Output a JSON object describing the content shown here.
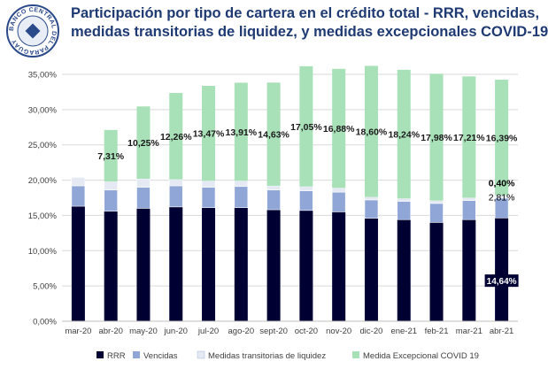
{
  "title": {
    "line1": "Participación por tipo de cartera en el crédito total  - RRR, vencidas,",
    "line2": "medidas transitorias de liquidez, y medidas excepcionales COVID-19"
  },
  "logo": {
    "text": "BANCO CENTRAL DEL PARAGUAY"
  },
  "colors": {
    "rrr": "#000033",
    "vencidas": "#8fa6d6",
    "transitorias": "#e4e9f4",
    "covid": "#a8e0b8",
    "grid": "#d9d9d9",
    "title": "#1f3a73"
  },
  "chart_data": {
    "type": "bar",
    "stacked": true,
    "categories": [
      "mar-20",
      "abr-20",
      "may-20",
      "jun-20",
      "jul-20",
      "ago-20",
      "sept-20",
      "oct-20",
      "nov-20",
      "dic-20",
      "ene-21",
      "feb-21",
      "mar-21",
      "abr-21"
    ],
    "ylim": [
      0,
      35
    ],
    "yticks": [
      "0,00%",
      "5,00%",
      "10,00%",
      "15,00%",
      "20,00%",
      "25,00%",
      "30,00%",
      "35,00%"
    ],
    "series": [
      {
        "name": "RRR",
        "values": [
          16.3,
          15.6,
          16.0,
          16.2,
          16.1,
          16.1,
          15.8,
          15.7,
          15.5,
          14.6,
          14.4,
          14.0,
          14.4,
          14.64
        ]
      },
      {
        "name": "Vencidas",
        "values": [
          2.9,
          3.0,
          3.0,
          3.0,
          2.9,
          3.0,
          2.8,
          2.8,
          2.8,
          2.6,
          2.6,
          2.7,
          2.7,
          2.81
        ]
      },
      {
        "name": "Medidas transitorias de liquidez",
        "values": [
          1.2,
          1.2,
          1.2,
          0.9,
          0.9,
          0.8,
          0.6,
          0.6,
          0.6,
          0.4,
          0.4,
          0.4,
          0.4,
          0.4
        ]
      },
      {
        "name": "Medida Excepcional COVID 19",
        "values": [
          0,
          7.31,
          10.25,
          12.26,
          13.47,
          13.91,
          14.63,
          17.05,
          16.88,
          18.6,
          18.24,
          17.98,
          17.21,
          16.39
        ]
      }
    ],
    "data_labels": [
      "",
      "7,31%",
      "10,25%",
      "12,26%",
      "13,47%",
      "13,91%",
      "14,63%",
      "17,05%",
      "16,88%",
      "18,60%",
      "18,24%",
      "17,98%",
      "17,21%",
      "16,39%"
    ],
    "extra_labels": {
      "rrr_last": "14,64%",
      "vencidas_last": "2,81%",
      "transitorias_last": "0,40%"
    },
    "legend": [
      "RRR",
      "Vencidas",
      "Medidas transitorias de liquidez",
      "Medida Excepcional COVID 19"
    ],
    "legend_position": "bottom"
  }
}
